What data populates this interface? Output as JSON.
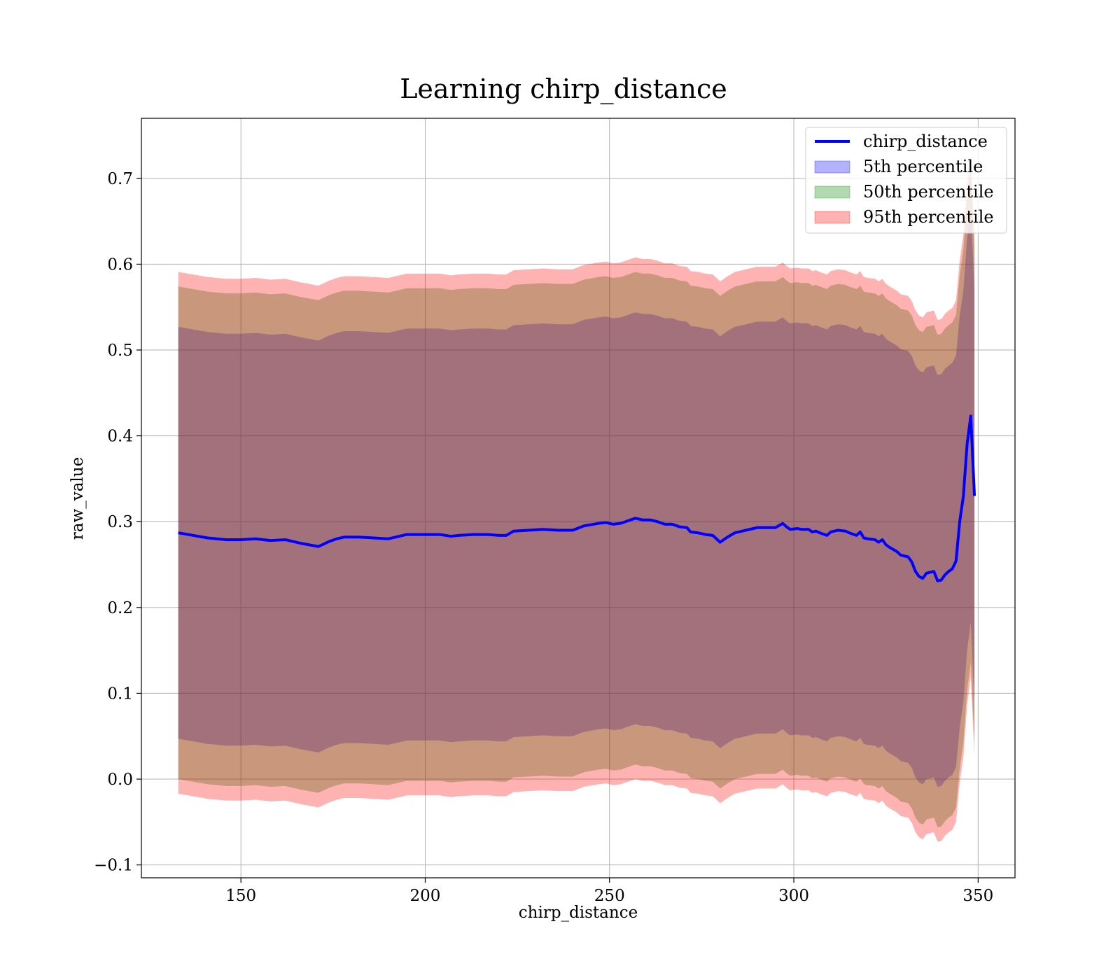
{
  "chart_data": {
    "type": "line",
    "title": "Learning chirp_distance",
    "xlabel": "chirp_distance",
    "ylabel": "raw_value",
    "xlim": [
      123,
      360
    ],
    "ylim": [
      -0.115,
      0.77
    ],
    "xticks": [
      150,
      200,
      250,
      300,
      350
    ],
    "yticks": [
      -0.1,
      0.0,
      0.1,
      0.2,
      0.3,
      0.4,
      0.5,
      0.6,
      0.7
    ],
    "xtick_labels": [
      "150",
      "200",
      "250",
      "300",
      "350"
    ],
    "ytick_labels": [
      "−0.1",
      "0.0",
      "0.1",
      "0.2",
      "0.3",
      "0.4",
      "0.5",
      "0.6",
      "0.7"
    ],
    "grid": true,
    "legend_position": "top-right",
    "x": [
      133,
      137,
      141,
      146,
      150,
      154,
      158,
      162,
      166,
      171,
      174,
      176,
      178,
      182,
      186,
      190,
      195,
      200,
      204,
      207,
      209,
      213,
      217,
      220,
      222,
      224,
      228,
      232,
      236,
      240,
      243,
      247,
      249,
      251,
      253,
      257,
      259,
      261,
      263,
      265,
      267,
      269,
      271,
      272,
      274,
      276,
      278,
      280,
      282,
      284,
      286,
      288,
      290,
      291,
      293,
      295,
      297,
      298,
      299,
      301,
      302,
      304,
      305,
      306,
      307,
      309,
      310,
      312,
      314,
      315,
      317,
      318,
      319,
      320,
      322,
      323,
      324,
      325,
      326,
      328,
      329,
      330,
      331,
      332,
      333,
      334,
      335,
      336,
      337,
      338,
      339,
      340,
      341,
      342,
      343,
      344,
      345,
      346,
      347,
      348,
      349
    ],
    "series": [
      {
        "name": "chirp_distance",
        "color": "#0000ff",
        "values": [
          0.287,
          0.284,
          0.281,
          0.279,
          0.279,
          0.28,
          0.278,
          0.279,
          0.275,
          0.271,
          0.277,
          0.28,
          0.282,
          0.282,
          0.281,
          0.28,
          0.285,
          0.285,
          0.285,
          0.283,
          0.284,
          0.285,
          0.285,
          0.284,
          0.284,
          0.289,
          0.29,
          0.291,
          0.29,
          0.29,
          0.295,
          0.298,
          0.299,
          0.297,
          0.298,
          0.304,
          0.302,
          0.302,
          0.3,
          0.297,
          0.297,
          0.294,
          0.293,
          0.288,
          0.287,
          0.285,
          0.284,
          0.276,
          0.282,
          0.287,
          0.289,
          0.291,
          0.293,
          0.293,
          0.293,
          0.293,
          0.298,
          0.294,
          0.291,
          0.292,
          0.291,
          0.291,
          0.288,
          0.289,
          0.287,
          0.284,
          0.288,
          0.29,
          0.289,
          0.287,
          0.284,
          0.288,
          0.281,
          0.28,
          0.279,
          0.276,
          0.279,
          0.273,
          0.27,
          0.265,
          0.261,
          0.26,
          0.259,
          0.253,
          0.242,
          0.236,
          0.234,
          0.24,
          0.241,
          0.242,
          0.231,
          0.232,
          0.238,
          0.242,
          0.245,
          0.254,
          0.3,
          0.33,
          0.39,
          0.423,
          0.33
        ]
      }
    ],
    "bands": [
      {
        "name": "5th percentile",
        "color": "#0000ff",
        "opacity": 0.3,
        "lower": [
          0.047,
          0.044,
          0.041,
          0.039,
          0.039,
          0.04,
          0.038,
          0.039,
          0.035,
          0.031,
          0.037,
          0.04,
          0.042,
          0.042,
          0.041,
          0.04,
          0.045,
          0.045,
          0.045,
          0.043,
          0.044,
          0.045,
          0.045,
          0.044,
          0.044,
          0.049,
          0.05,
          0.051,
          0.05,
          0.05,
          0.055,
          0.058,
          0.059,
          0.057,
          0.058,
          0.064,
          0.062,
          0.062,
          0.06,
          0.057,
          0.057,
          0.054,
          0.053,
          0.048,
          0.047,
          0.045,
          0.044,
          0.036,
          0.042,
          0.047,
          0.049,
          0.051,
          0.053,
          0.053,
          0.053,
          0.053,
          0.058,
          0.054,
          0.051,
          0.052,
          0.051,
          0.051,
          0.048,
          0.049,
          0.047,
          0.044,
          0.048,
          0.05,
          0.049,
          0.047,
          0.044,
          0.048,
          0.041,
          0.04,
          0.039,
          0.036,
          0.039,
          0.033,
          0.03,
          0.025,
          0.021,
          0.02,
          0.019,
          0.013,
          0.002,
          -0.004,
          -0.006,
          0.0,
          0.001,
          0.002,
          -0.009,
          -0.008,
          -0.002,
          0.002,
          0.005,
          0.014,
          0.06,
          0.09,
          0.15,
          0.183,
          0.09
        ],
        "upper": [
          0.527,
          0.524,
          0.521,
          0.519,
          0.519,
          0.52,
          0.518,
          0.519,
          0.515,
          0.511,
          0.517,
          0.52,
          0.522,
          0.522,
          0.521,
          0.52,
          0.525,
          0.525,
          0.525,
          0.523,
          0.524,
          0.525,
          0.525,
          0.524,
          0.524,
          0.529,
          0.53,
          0.531,
          0.53,
          0.53,
          0.535,
          0.538,
          0.539,
          0.537,
          0.538,
          0.544,
          0.542,
          0.542,
          0.54,
          0.537,
          0.537,
          0.534,
          0.533,
          0.528,
          0.527,
          0.525,
          0.524,
          0.516,
          0.522,
          0.527,
          0.529,
          0.531,
          0.533,
          0.533,
          0.533,
          0.533,
          0.538,
          0.534,
          0.531,
          0.532,
          0.531,
          0.531,
          0.528,
          0.529,
          0.527,
          0.524,
          0.528,
          0.53,
          0.529,
          0.527,
          0.524,
          0.528,
          0.521,
          0.52,
          0.519,
          0.516,
          0.519,
          0.513,
          0.51,
          0.505,
          0.501,
          0.5,
          0.499,
          0.493,
          0.482,
          0.476,
          0.474,
          0.48,
          0.481,
          0.482,
          0.471,
          0.472,
          0.478,
          0.482,
          0.485,
          0.494,
          0.54,
          0.57,
          0.63,
          0.663,
          0.57
        ]
      },
      {
        "name": "50th percentile",
        "color": "#008000",
        "opacity": 0.3,
        "lower": [
          0.0,
          -0.003,
          -0.006,
          -0.008,
          -0.008,
          -0.007,
          -0.009,
          -0.008,
          -0.012,
          -0.016,
          -0.01,
          -0.007,
          -0.005,
          -0.005,
          -0.006,
          -0.007,
          -0.002,
          -0.002,
          -0.002,
          -0.004,
          -0.003,
          -0.002,
          -0.002,
          -0.003,
          -0.003,
          0.002,
          0.003,
          0.004,
          0.003,
          0.003,
          0.008,
          0.011,
          0.012,
          0.01,
          0.011,
          0.017,
          0.015,
          0.015,
          0.013,
          0.01,
          0.01,
          0.007,
          0.006,
          0.001,
          0.0,
          -0.002,
          -0.003,
          -0.011,
          -0.005,
          0.0,
          0.002,
          0.004,
          0.006,
          0.006,
          0.006,
          0.006,
          0.011,
          0.007,
          0.004,
          0.005,
          0.004,
          0.004,
          0.001,
          0.002,
          0.0,
          -0.003,
          0.001,
          0.003,
          0.002,
          0.0,
          -0.003,
          0.001,
          -0.006,
          -0.007,
          -0.008,
          -0.011,
          -0.008,
          -0.014,
          -0.017,
          -0.022,
          -0.026,
          -0.027,
          -0.028,
          -0.034,
          -0.045,
          -0.051,
          -0.053,
          -0.047,
          -0.046,
          -0.045,
          -0.056,
          -0.055,
          -0.049,
          -0.045,
          -0.042,
          -0.033,
          0.013,
          0.043,
          0.103,
          0.136,
          0.043
        ],
        "upper": [
          0.574,
          0.571,
          0.568,
          0.566,
          0.566,
          0.567,
          0.565,
          0.566,
          0.562,
          0.558,
          0.564,
          0.567,
          0.569,
          0.569,
          0.568,
          0.567,
          0.572,
          0.572,
          0.572,
          0.57,
          0.571,
          0.572,
          0.572,
          0.571,
          0.571,
          0.576,
          0.577,
          0.578,
          0.577,
          0.577,
          0.582,
          0.585,
          0.586,
          0.584,
          0.585,
          0.591,
          0.589,
          0.589,
          0.587,
          0.584,
          0.584,
          0.581,
          0.58,
          0.575,
          0.574,
          0.572,
          0.571,
          0.563,
          0.569,
          0.574,
          0.576,
          0.578,
          0.58,
          0.58,
          0.58,
          0.58,
          0.585,
          0.581,
          0.578,
          0.579,
          0.578,
          0.578,
          0.575,
          0.576,
          0.574,
          0.571,
          0.575,
          0.577,
          0.576,
          0.574,
          0.571,
          0.575,
          0.568,
          0.567,
          0.566,
          0.563,
          0.566,
          0.56,
          0.557,
          0.552,
          0.548,
          0.547,
          0.546,
          0.54,
          0.529,
          0.523,
          0.521,
          0.527,
          0.528,
          0.529,
          0.518,
          0.519,
          0.525,
          0.529,
          0.532,
          0.541,
          0.587,
          0.617,
          0.677,
          0.71,
          0.617
        ]
      },
      {
        "name": "95th percentile",
        "color": "#ff0000",
        "opacity": 0.3,
        "lower": [
          -0.017,
          -0.02,
          -0.023,
          -0.025,
          -0.025,
          -0.024,
          -0.026,
          -0.025,
          -0.029,
          -0.033,
          -0.027,
          -0.024,
          -0.022,
          -0.022,
          -0.023,
          -0.024,
          -0.019,
          -0.019,
          -0.019,
          -0.021,
          -0.02,
          -0.019,
          -0.019,
          -0.02,
          -0.02,
          -0.015,
          -0.014,
          -0.013,
          -0.014,
          -0.014,
          -0.009,
          -0.006,
          -0.005,
          -0.007,
          -0.006,
          0.0,
          -0.002,
          -0.002,
          -0.004,
          -0.007,
          -0.007,
          -0.01,
          -0.011,
          -0.016,
          -0.017,
          -0.019,
          -0.02,
          -0.028,
          -0.022,
          -0.017,
          -0.015,
          -0.013,
          -0.011,
          -0.011,
          -0.011,
          -0.011,
          -0.006,
          -0.01,
          -0.013,
          -0.012,
          -0.013,
          -0.013,
          -0.016,
          -0.015,
          -0.017,
          -0.02,
          -0.016,
          -0.014,
          -0.015,
          -0.017,
          -0.02,
          -0.016,
          -0.023,
          -0.024,
          -0.025,
          -0.028,
          -0.025,
          -0.031,
          -0.034,
          -0.039,
          -0.043,
          -0.044,
          -0.045,
          -0.051,
          -0.062,
          -0.068,
          -0.07,
          -0.064,
          -0.063,
          -0.062,
          -0.073,
          -0.072,
          -0.066,
          -0.062,
          -0.059,
          -0.05,
          -0.004,
          0.026,
          0.086,
          0.119,
          0.026
        ],
        "upper": [
          0.591,
          0.588,
          0.585,
          0.583,
          0.583,
          0.584,
          0.582,
          0.583,
          0.579,
          0.575,
          0.581,
          0.584,
          0.586,
          0.586,
          0.585,
          0.584,
          0.589,
          0.589,
          0.589,
          0.587,
          0.588,
          0.589,
          0.589,
          0.588,
          0.588,
          0.593,
          0.594,
          0.595,
          0.594,
          0.594,
          0.599,
          0.602,
          0.603,
          0.601,
          0.602,
          0.608,
          0.606,
          0.606,
          0.604,
          0.601,
          0.601,
          0.598,
          0.597,
          0.592,
          0.591,
          0.589,
          0.588,
          0.58,
          0.586,
          0.591,
          0.593,
          0.595,
          0.597,
          0.597,
          0.597,
          0.597,
          0.602,
          0.598,
          0.595,
          0.596,
          0.595,
          0.595,
          0.592,
          0.593,
          0.591,
          0.588,
          0.592,
          0.594,
          0.593,
          0.591,
          0.588,
          0.592,
          0.585,
          0.584,
          0.583,
          0.58,
          0.583,
          0.577,
          0.574,
          0.569,
          0.565,
          0.564,
          0.563,
          0.557,
          0.546,
          0.54,
          0.538,
          0.544,
          0.545,
          0.546,
          0.535,
          0.536,
          0.542,
          0.546,
          0.549,
          0.558,
          0.604,
          0.634,
          0.694,
          0.727,
          0.634
        ]
      }
    ],
    "legend": [
      {
        "label": "chirp_distance",
        "kind": "line",
        "color": "#0000ff"
      },
      {
        "label": "5th percentile",
        "kind": "patch",
        "color": "#0000ff"
      },
      {
        "label": "50th percentile",
        "kind": "patch",
        "color": "#008000"
      },
      {
        "label": "95th percentile",
        "kind": "patch",
        "color": "#ff0000"
      }
    ]
  }
}
